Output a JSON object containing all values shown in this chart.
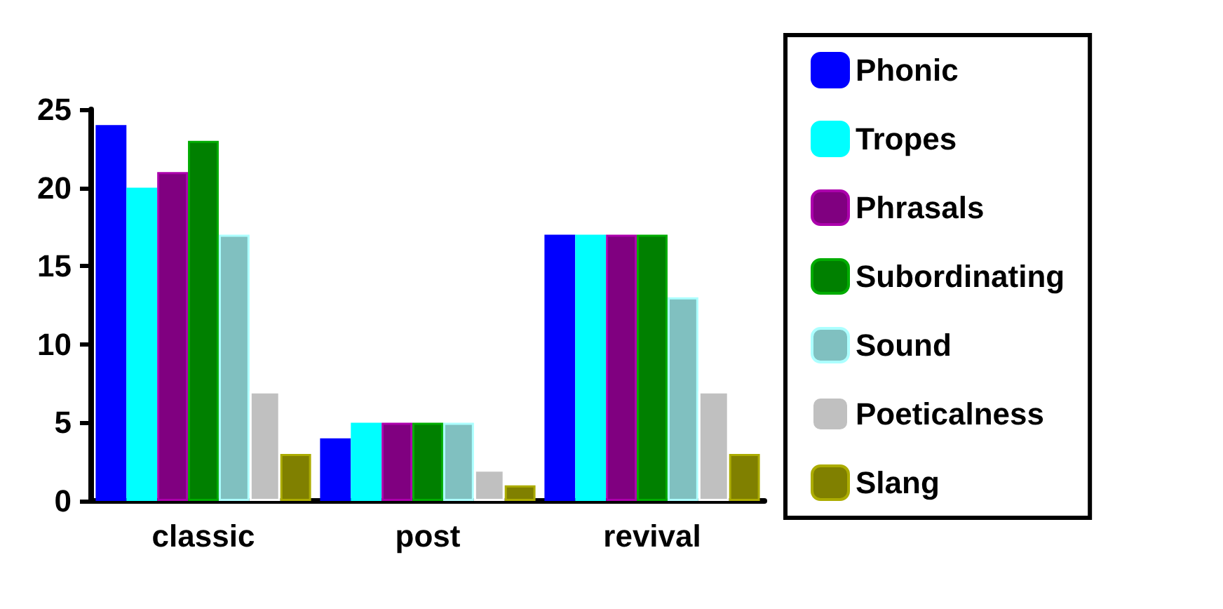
{
  "chart_data": {
    "type": "bar",
    "categories": [
      "classic",
      "post",
      "revival"
    ],
    "series": [
      {
        "name": "Phonic",
        "color": "#0000ff",
        "values": [
          24,
          4,
          17
        ]
      },
      {
        "name": "Tropes",
        "color": "#00ffff",
        "values": [
          20,
          5,
          17
        ]
      },
      {
        "name": "Phrasals",
        "color": "#800080",
        "values": [
          21,
          5,
          17
        ]
      },
      {
        "name": "Subordinating",
        "color": "#008000",
        "values": [
          23,
          5,
          17
        ]
      },
      {
        "name": "Sound",
        "color": "#80c0c0",
        "values": [
          17,
          5,
          13
        ]
      },
      {
        "name": "Poeticalness",
        "color": "#c0c0c0",
        "values": [
          7,
          2,
          7
        ]
      },
      {
        "name": "Slang",
        "color": "#808000",
        "values": [
          3,
          1,
          3
        ]
      }
    ],
    "ylim": [
      0,
      25
    ],
    "yticks": [
      0,
      5,
      10,
      15,
      20,
      25
    ],
    "grid": false,
    "legend": "right"
  }
}
